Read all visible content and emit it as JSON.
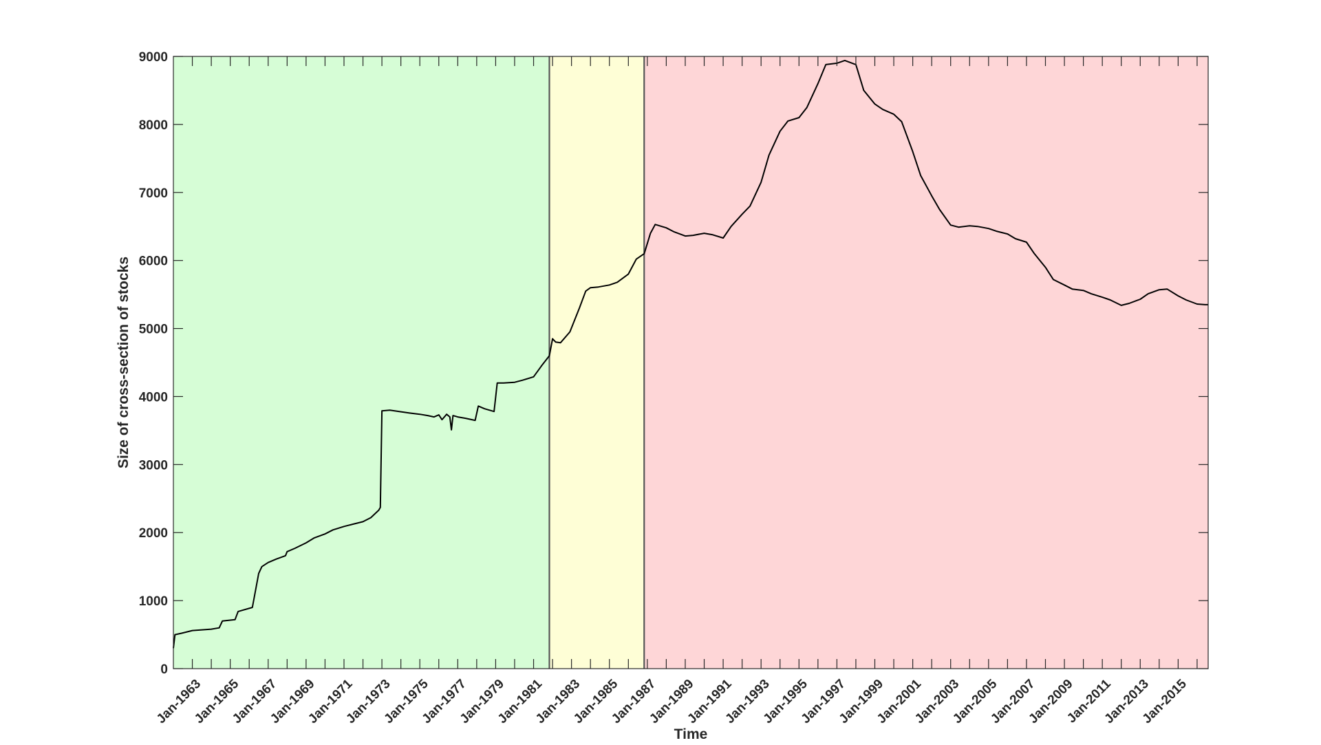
{
  "chart_data": {
    "type": "line",
    "title": "",
    "xlabel": "Time",
    "ylabel": "Size of cross-section of stocks",
    "xlim": [
      "1962-01",
      "2016-08"
    ],
    "ylim": [
      0,
      9000
    ],
    "grid": false,
    "legend": "none",
    "yticks": [
      0,
      1000,
      2000,
      3000,
      4000,
      5000,
      6000,
      7000,
      8000,
      9000
    ],
    "xtick_labels": [
      "Jan-1963",
      "Jan-1965",
      "Jan-1967",
      "Jan-1969",
      "Jan-1971",
      "Jan-1973",
      "Jan-1975",
      "Jan-1977",
      "Jan-1979",
      "Jan-1981",
      "Jan-1983",
      "Jan-1985",
      "Jan-1987",
      "Jan-1989",
      "Jan-1991",
      "Jan-1993",
      "Jan-1995",
      "Jan-1997",
      "Jan-1999",
      "Jan-2001",
      "Jan-2003",
      "Jan-2005",
      "Jan-2007",
      "Jan-2009",
      "Jan-2011",
      "Jan-2013",
      "Jan-2015"
    ],
    "regions": [
      {
        "start": "1962-01",
        "end": "1981-11",
        "color": "#d6fdd6"
      },
      {
        "start": "1981-11",
        "end": "1986-11",
        "color": "#fefed6"
      },
      {
        "start": "1986-11",
        "end": "2016-08",
        "color": "#fed6d7"
      }
    ],
    "vlines": [
      "1981-11",
      "1986-11"
    ],
    "line_color": "#000000",
    "series": [
      {
        "x": [
          "1962-01",
          "1962-02",
          "1962-06",
          "1963-01",
          "1964-01",
          "1964-06",
          "1964-08",
          "1965-04",
          "1965-06",
          "1966-03",
          "1966-07",
          "1966-09",
          "1967-01",
          "1967-06",
          "1967-12",
          "1968-01",
          "1968-06",
          "1969-01",
          "1969-06",
          "1970-01",
          "1970-06",
          "1971-01",
          "1971-06",
          "1972-01",
          "1972-06",
          "1972-11",
          "1972-12",
          "1973-01",
          "1973-06",
          "1973-12",
          "1974-06",
          "1975-01",
          "1975-06",
          "1975-10",
          "1976-01",
          "1976-03",
          "1976-06",
          "1976-08",
          "1976-09",
          "1976-10",
          "1977-01",
          "1977-06",
          "1977-12",
          "1978-02",
          "1978-06",
          "1978-12",
          "1979-02",
          "1979-06",
          "1980-01",
          "1980-06",
          "1981-01",
          "1981-06",
          "1981-11",
          "1982-01",
          "1982-03",
          "1982-06",
          "1982-12",
          "1983-06",
          "1983-10",
          "1984-01",
          "1984-06",
          "1985-01",
          "1985-06",
          "1986-01",
          "1986-06",
          "1986-11",
          "1987-03",
          "1987-06",
          "1988-01",
          "1988-06",
          "1989-01",
          "1989-06",
          "1990-01",
          "1990-06",
          "1991-01",
          "1991-06",
          "1992-01",
          "1992-06",
          "1993-01",
          "1993-06",
          "1994-01",
          "1994-06",
          "1995-01",
          "1995-06",
          "1996-01",
          "1996-06",
          "1997-01",
          "1997-06",
          "1998-01",
          "1998-06",
          "1999-01",
          "1999-06",
          "2000-01",
          "2000-06",
          "2001-01",
          "2001-06",
          "2002-01",
          "2002-06",
          "2003-01",
          "2003-06",
          "2004-01",
          "2004-06",
          "2005-01",
          "2005-06",
          "2006-01",
          "2006-06",
          "2007-01",
          "2007-06",
          "2008-01",
          "2008-06",
          "2009-01",
          "2009-06",
          "2010-01",
          "2010-06",
          "2011-01",
          "2011-06",
          "2012-01",
          "2012-06",
          "2013-01",
          "2013-06",
          "2014-01",
          "2014-06",
          "2015-01",
          "2015-06",
          "2016-01",
          "2016-06",
          "2016-08"
        ],
        "y": [
          300,
          500,
          520,
          560,
          580,
          600,
          700,
          720,
          840,
          900,
          1400,
          1500,
          1560,
          1610,
          1660,
          1720,
          1770,
          1850,
          1920,
          1980,
          2040,
          2090,
          2120,
          2160,
          2220,
          2330,
          2370,
          3790,
          3800,
          3780,
          3760,
          3740,
          3720,
          3700,
          3730,
          3660,
          3740,
          3700,
          3510,
          3720,
          3700,
          3680,
          3650,
          3860,
          3820,
          3780,
          4200,
          4200,
          4210,
          4240,
          4290,
          4450,
          4600,
          4850,
          4800,
          4790,
          4950,
          5300,
          5550,
          5600,
          5610,
          5640,
          5680,
          5800,
          6020,
          6100,
          6400,
          6530,
          6480,
          6420,
          6360,
          6370,
          6400,
          6380,
          6330,
          6500,
          6680,
          6800,
          7150,
          7550,
          7900,
          8050,
          8100,
          8250,
          8600,
          8880,
          8900,
          8940,
          8880,
          8500,
          8300,
          8220,
          8150,
          8040,
          7600,
          7250,
          6950,
          6750,
          6520,
          6490,
          6510,
          6500,
          6470,
          6430,
          6390,
          6320,
          6270,
          6100,
          5900,
          5720,
          5640,
          5580,
          5560,
          5510,
          5460,
          5420,
          5340,
          5370,
          5430,
          5510,
          5570,
          5580,
          5480,
          5420,
          5360,
          5350,
          5350
        ]
      }
    ]
  }
}
